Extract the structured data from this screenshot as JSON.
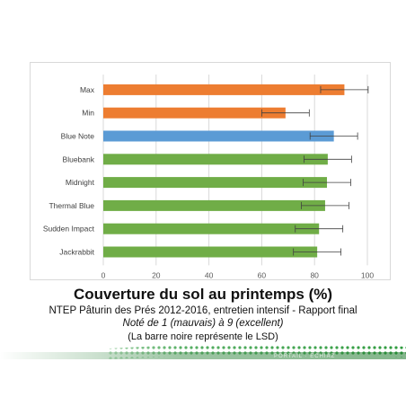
{
  "chart_data": {
    "type": "bar",
    "orientation": "horizontal",
    "categories": [
      "Max",
      "Min",
      "Blue Note",
      "Bluebank",
      "Midnight",
      "Thermal Blue",
      "Sudden Impact",
      "Jackrabbit"
    ],
    "values": [
      91.3,
      69.0,
      87.3,
      85.0,
      84.7,
      84.0,
      81.7,
      81.0
    ],
    "colors": [
      "#ed7d31",
      "#ed7d31",
      "#5b9bd5",
      "#70ad47",
      "#70ad47",
      "#70ad47",
      "#70ad47",
      "#70ad47"
    ],
    "error": [
      9.0,
      9.0,
      9.0,
      9.0,
      9.0,
      9.0,
      9.0,
      9.0
    ],
    "xlim": [
      0,
      100
    ],
    "xticks": [
      0,
      20,
      40,
      60,
      80,
      100
    ],
    "grid": true,
    "title": "Couverture du sol au printemps (%)",
    "subtitle": "NTEP Pâturin des Prés 2012-2016, entretien intensif - Rapport final",
    "note": "Noté de 1 (mauvais) à 9 (excellent)",
    "lsd_note": "(La barre noire représente le LSD)"
  },
  "footer": {
    "watermark": "PORTAIL · ECHIAZ"
  }
}
